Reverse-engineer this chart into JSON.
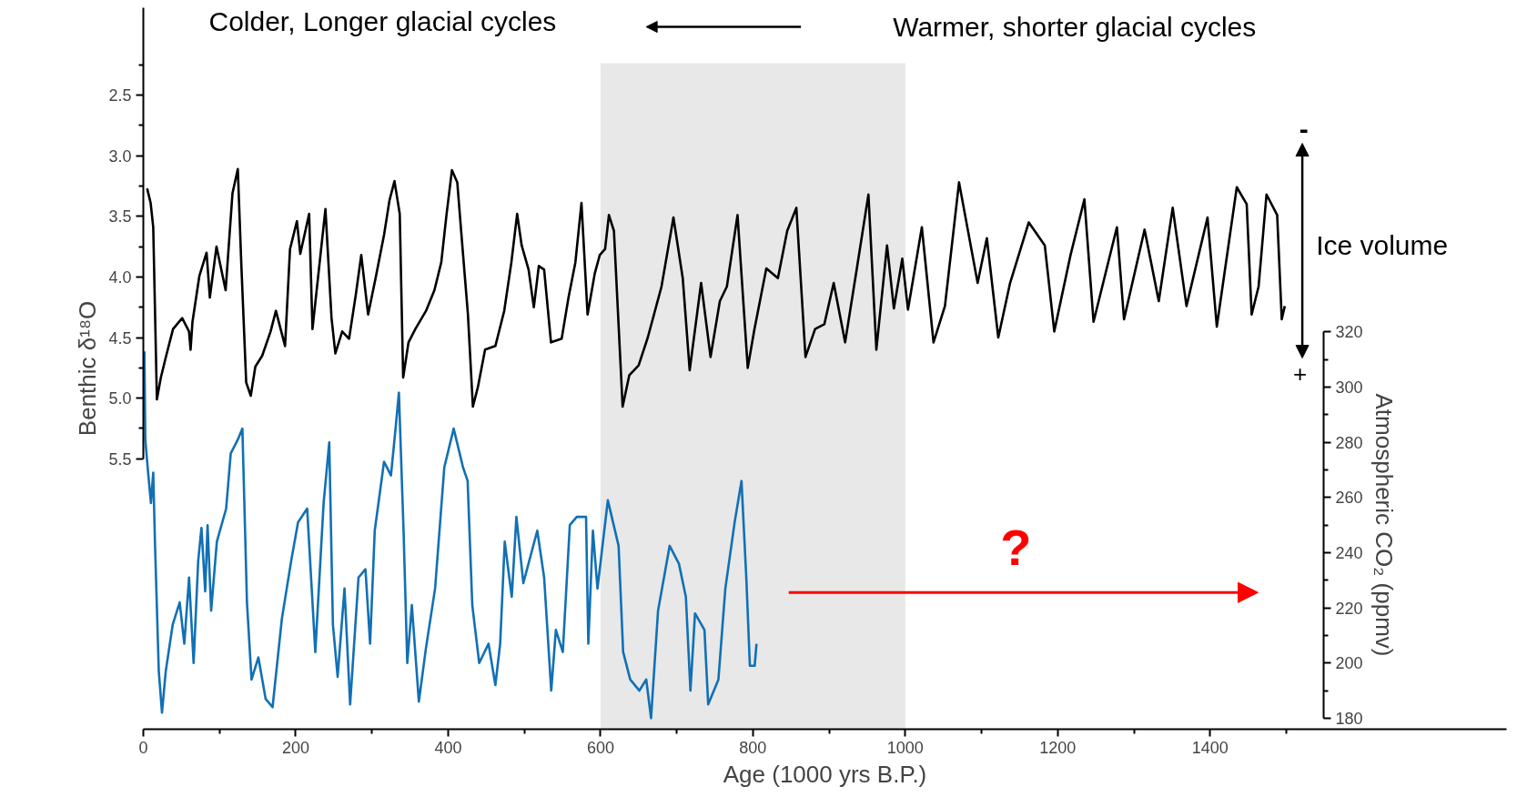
{
  "chart_data": {
    "type": "line",
    "xlabel": "Age (1000 yrs B.P.)",
    "ylabel": "Benthic δ¹⁸O",
    "y2label": "Atmospheric CO₂ (ppmv)",
    "xlim": [
      0,
      1789
    ],
    "xticks": [
      0,
      200,
      400,
      600,
      800,
      1000,
      1200,
      1400
    ],
    "ylim": [
      7.73,
      1.78
    ],
    "yticks": [
      2.5,
      {
        "value": 3,
        "label": "3.0"
      },
      3.5,
      {
        "value": 4,
        "label": "4.0"
      },
      4.5,
      {
        "value": 5,
        "label": "5.0"
      },
      5.5
    ],
    "y2lim": [
      176,
      437.6
    ],
    "y2ticks": [
      180,
      200,
      220,
      240,
      260,
      280,
      300,
      320
    ],
    "line_style": "solid",
    "bands": [
      {
        "axis": "x",
        "from": 600,
        "to": 1000,
        "color": "#e8e8e8"
      }
    ],
    "annotations": [
      "Colder, Longer glacial cycles",
      "Warmer, shorter glacial cycles",
      "Ice volume",
      "-",
      "+",
      "?"
    ],
    "series": [
      {
        "color": "#000000",
        "x": [
          5,
          9.6,
          13,
          17.8,
          23,
          30,
          39,
          51,
          60,
          62,
          64.5,
          73.6,
          83,
          87.3,
          96,
          108,
          117,
          124,
          128.5,
          135,
          141,
          147,
          156,
          167,
          174,
          186,
          192.5,
          201.6,
          206,
          217.6,
          222,
          229,
          239,
          247,
          252,
          261,
          270,
          279,
          286,
          295,
          304.5,
          316,
          323,
          329.6,
          336.5,
          341,
          348,
          357,
          371,
          382,
          391,
          398,
          405,
          412,
          419,
          426,
          432.5,
          439,
          448.5,
          462,
          473.6,
          483,
          490.6,
          496.5,
          505.6,
          512.5,
          519,
          526,
          535,
          549,
          558,
          567,
          575,
          583,
          592.5,
          599,
          606,
          611,
          617.6,
          629,
          637.8,
          650,
          662,
          680,
          695.7,
          707.9,
          717,
          732,
          744.4,
          756.6,
          765.8,
          779.8,
          793.2,
          802,
          817.6,
          832.8,
          845,
          857,
          869,
          881.6,
          893.7,
          906,
          921,
          936.4,
          951.6,
          962,
          976,
          985,
          996,
          1003.5,
          1021.7,
          1037,
          1052,
          1070.5,
          1094.9,
          1107,
          1122,
          1137.5,
          1162,
          1183,
          1195.5,
          1216.8,
          1235,
          1247,
          1277.7,
          1287,
          1314,
          1332.6,
          1350.9,
          1369,
          1396.6,
          1408.8,
          1435,
          1448,
          1454.5,
          1463.6,
          1474,
          1488,
          1494,
          1498
        ],
        "values": [
          3.27,
          3.39,
          3.59,
          5.01,
          4.83,
          4.65,
          4.43,
          4.34,
          4.45,
          4.6,
          4.37,
          3.99,
          3.8,
          4.17,
          3.75,
          4.11,
          3.31,
          3.11,
          3.88,
          4.87,
          4.98,
          4.74,
          4.65,
          4.45,
          4.28,
          4.57,
          3.77,
          3.54,
          3.81,
          3.48,
          4.43,
          4.02,
          3.44,
          4.34,
          4.63,
          4.45,
          4.51,
          4.14,
          3.82,
          4.31,
          4.02,
          3.65,
          3.37,
          3.21,
          3.48,
          4.83,
          4.54,
          4.43,
          4.28,
          4.11,
          3.88,
          3.48,
          3.12,
          3.22,
          3.77,
          4.31,
          5.07,
          4.91,
          4.6,
          4.57,
          4.28,
          3.88,
          3.48,
          3.74,
          3.94,
          4.25,
          3.91,
          3.94,
          4.54,
          4.51,
          4.17,
          3.88,
          3.39,
          4.31,
          3.97,
          3.82,
          3.77,
          3.49,
          3.62,
          5.07,
          4.81,
          4.73,
          4.5,
          4.08,
          3.51,
          4.01,
          4.77,
          4.05,
          4.66,
          4.2,
          4.08,
          3.49,
          4.75,
          4.43,
          3.93,
          4.01,
          3.62,
          3.43,
          4.66,
          4.43,
          4.39,
          4.05,
          4.54,
          3.93,
          3.32,
          4.6,
          3.74,
          4.26,
          3.85,
          4.27,
          3.59,
          4.54,
          4.24,
          3.22,
          4.05,
          3.68,
          4.5,
          4.05,
          3.55,
          3.74,
          4.45,
          3.82,
          3.36,
          4.37,
          3.59,
          4.35,
          3.61,
          4.2,
          3.43,
          4.24,
          3.51,
          4.41,
          3.26,
          3.4,
          4.31,
          4.08,
          3.32,
          3.49,
          4.35,
          4.24
        ]
      },
      {
        "color": "#1170b5",
        "axis": "y2",
        "x": [
          1.4,
          2.6,
          6.3,
          10,
          13,
          15.4,
          20.3,
          24.5,
          29.4,
          38.6,
          47.7,
          53.8,
          60,
          66,
          72,
          76.3,
          81.2,
          84.3,
          89,
          96.5,
          108.7,
          114.7,
          124,
          130,
          136,
          142,
          151,
          160.5,
          169.6,
          181.8,
          194,
          203,
          215,
          225.7,
          236.6,
          244,
          248.8,
          255,
          264,
          271.4,
          282.4,
          291.5,
          297.6,
          303.7,
          315.9,
          325,
          331,
          335.4,
          341.5,
          346.4,
          352.4,
          361.6,
          370.7,
          382.9,
          395,
          407.3,
          419.5,
          425.6,
          431.7,
          440.8,
          453,
          462,
          468.3,
          474.3,
          483.5,
          489.6,
          498.7,
          517,
          526,
          535.3,
          541.4,
          550.5,
          559.7,
          568.8,
          581,
          584,
          590,
          596,
          609.6,
          623.7,
          629.7,
          639,
          651,
          660,
          666.3,
          675.5,
          690.7,
          702.9,
          712,
          718,
          724,
          736.4,
          741.3,
          754.7,
          763.8,
          776,
          785,
          791.3,
          796,
          802.3,
          804.7
        ],
        "values": [
          313,
          281,
          269,
          258,
          269,
          242.5,
          197,
          182,
          197,
          214,
          222,
          207,
          231,
          200,
          237,
          249,
          226,
          250,
          219,
          244,
          256,
          276,
          281,
          285,
          222,
          194,
          202,
          187,
          184,
          216,
          237,
          251,
          256,
          204,
          258,
          280,
          214,
          195,
          227,
          185,
          231,
          234,
          207,
          248,
          273,
          268,
          285,
          298,
          248,
          200,
          221,
          186,
          205,
          227,
          271,
          285,
          271,
          266,
          221,
          200,
          207,
          192,
          207,
          244,
          224,
          253,
          229,
          248,
          231,
          190,
          212,
          204,
          250,
          253,
          253,
          207,
          248,
          227,
          259,
          242.5,
          204,
          194,
          190,
          194,
          180,
          219,
          242.5,
          236,
          224,
          190,
          218,
          212,
          185,
          194,
          227,
          251,
          266,
          231,
          199,
          199,
          207
        ]
      }
    ]
  }
}
